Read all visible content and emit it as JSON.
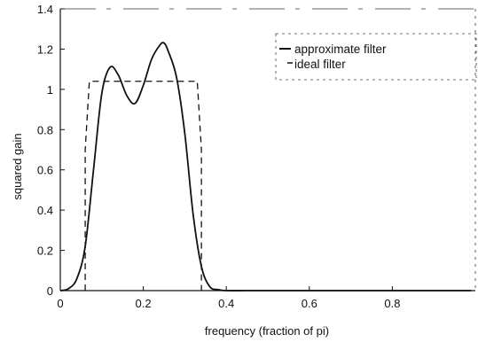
{
  "chart_data": {
    "type": "line",
    "xlabel": "frequency (fraction of pi)",
    "ylabel": "squared gain",
    "xlim": [
      0,
      1
    ],
    "ylim": [
      0,
      1.4
    ],
    "x_ticks": [
      "0",
      "0.2",
      "0.4",
      "0.6",
      "0.8"
    ],
    "x_tick_values": [
      0,
      0.2,
      0.4,
      0.6,
      0.8
    ],
    "y_ticks": [
      "0",
      "0.2",
      "0.4",
      "0.6",
      "0.8",
      "1",
      "1.2",
      "1.4"
    ],
    "y_tick_values": [
      0,
      0.2,
      0.4,
      0.6,
      0.8,
      1.0,
      1.2,
      1.4
    ],
    "grid": false,
    "legend_position": "top-right",
    "series": [
      {
        "name": "approximate filter",
        "style": "solid",
        "x": [
          0,
          0.02,
          0.04,
          0.06,
          0.08,
          0.1,
          0.12,
          0.14,
          0.16,
          0.18,
          0.2,
          0.22,
          0.24,
          0.25,
          0.26,
          0.28,
          0.3,
          0.32,
          0.34,
          0.36,
          0.38,
          0.4,
          0.45,
          0.5,
          0.6,
          0.7,
          0.8,
          0.9,
          0.99
        ],
        "y": [
          0,
          0.01,
          0.06,
          0.22,
          0.6,
          0.98,
          1.11,
          1.07,
          0.97,
          0.93,
          1.02,
          1.15,
          1.22,
          1.23,
          1.19,
          1.06,
          0.78,
          0.38,
          0.12,
          0.02,
          0.005,
          0,
          0,
          0,
          0,
          0,
          0,
          0,
          0
        ]
      },
      {
        "name": "ideal filter",
        "style": "dashed",
        "x": [
          0.06,
          0.06,
          0.07,
          0.33,
          0.34,
          0.34
        ],
        "y": [
          0,
          0.7,
          1.04,
          1.04,
          0.7,
          0
        ]
      }
    ],
    "legend": [
      "approximate filter",
      "ideal filter"
    ]
  }
}
